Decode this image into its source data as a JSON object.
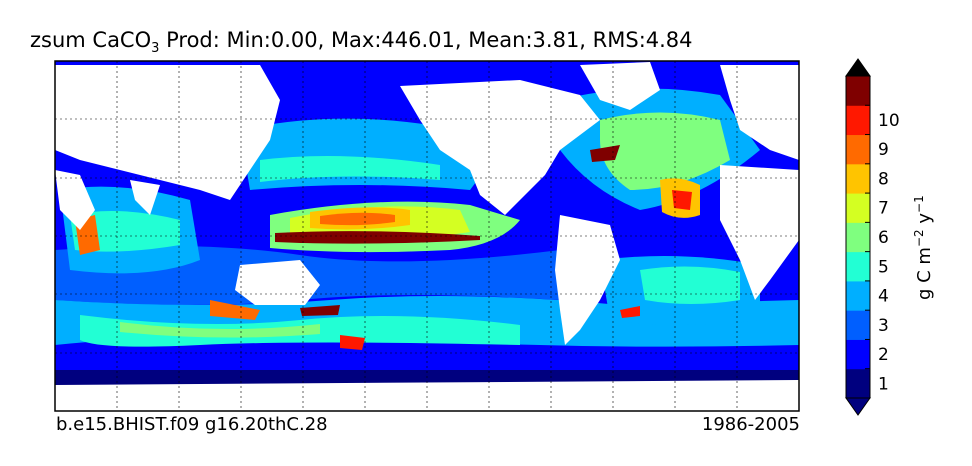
{
  "title": {
    "var_prefix": "zsum CaCO",
    "var_sub": "3",
    "stats": " Prod: Min:0.00, Max:446.01, Mean:3.81, RMS:4.84"
  },
  "footer": {
    "case": "b.e15.BHIST.f09 g16.20thC.28",
    "years": "1986-2005"
  },
  "colorbar": {
    "units_main": "g C m",
    "units_exp1": "−2",
    "units_mid": " y",
    "units_exp2": "−1",
    "ticks": [
      "1",
      "2",
      "3",
      "4",
      "5",
      "6",
      "7",
      "8",
      "9",
      "10"
    ],
    "colors": [
      "#00007f",
      "#0000ff",
      "#005fff",
      "#00afff",
      "#22ffd4",
      "#7fff7f",
      "#d4ff22",
      "#ffc400",
      "#ff6a00",
      "#ff1800",
      "#7f0000"
    ]
  },
  "map": {
    "land_color": "#ffffff",
    "grid": "dashed",
    "background_level_color": "#00007f"
  }
}
